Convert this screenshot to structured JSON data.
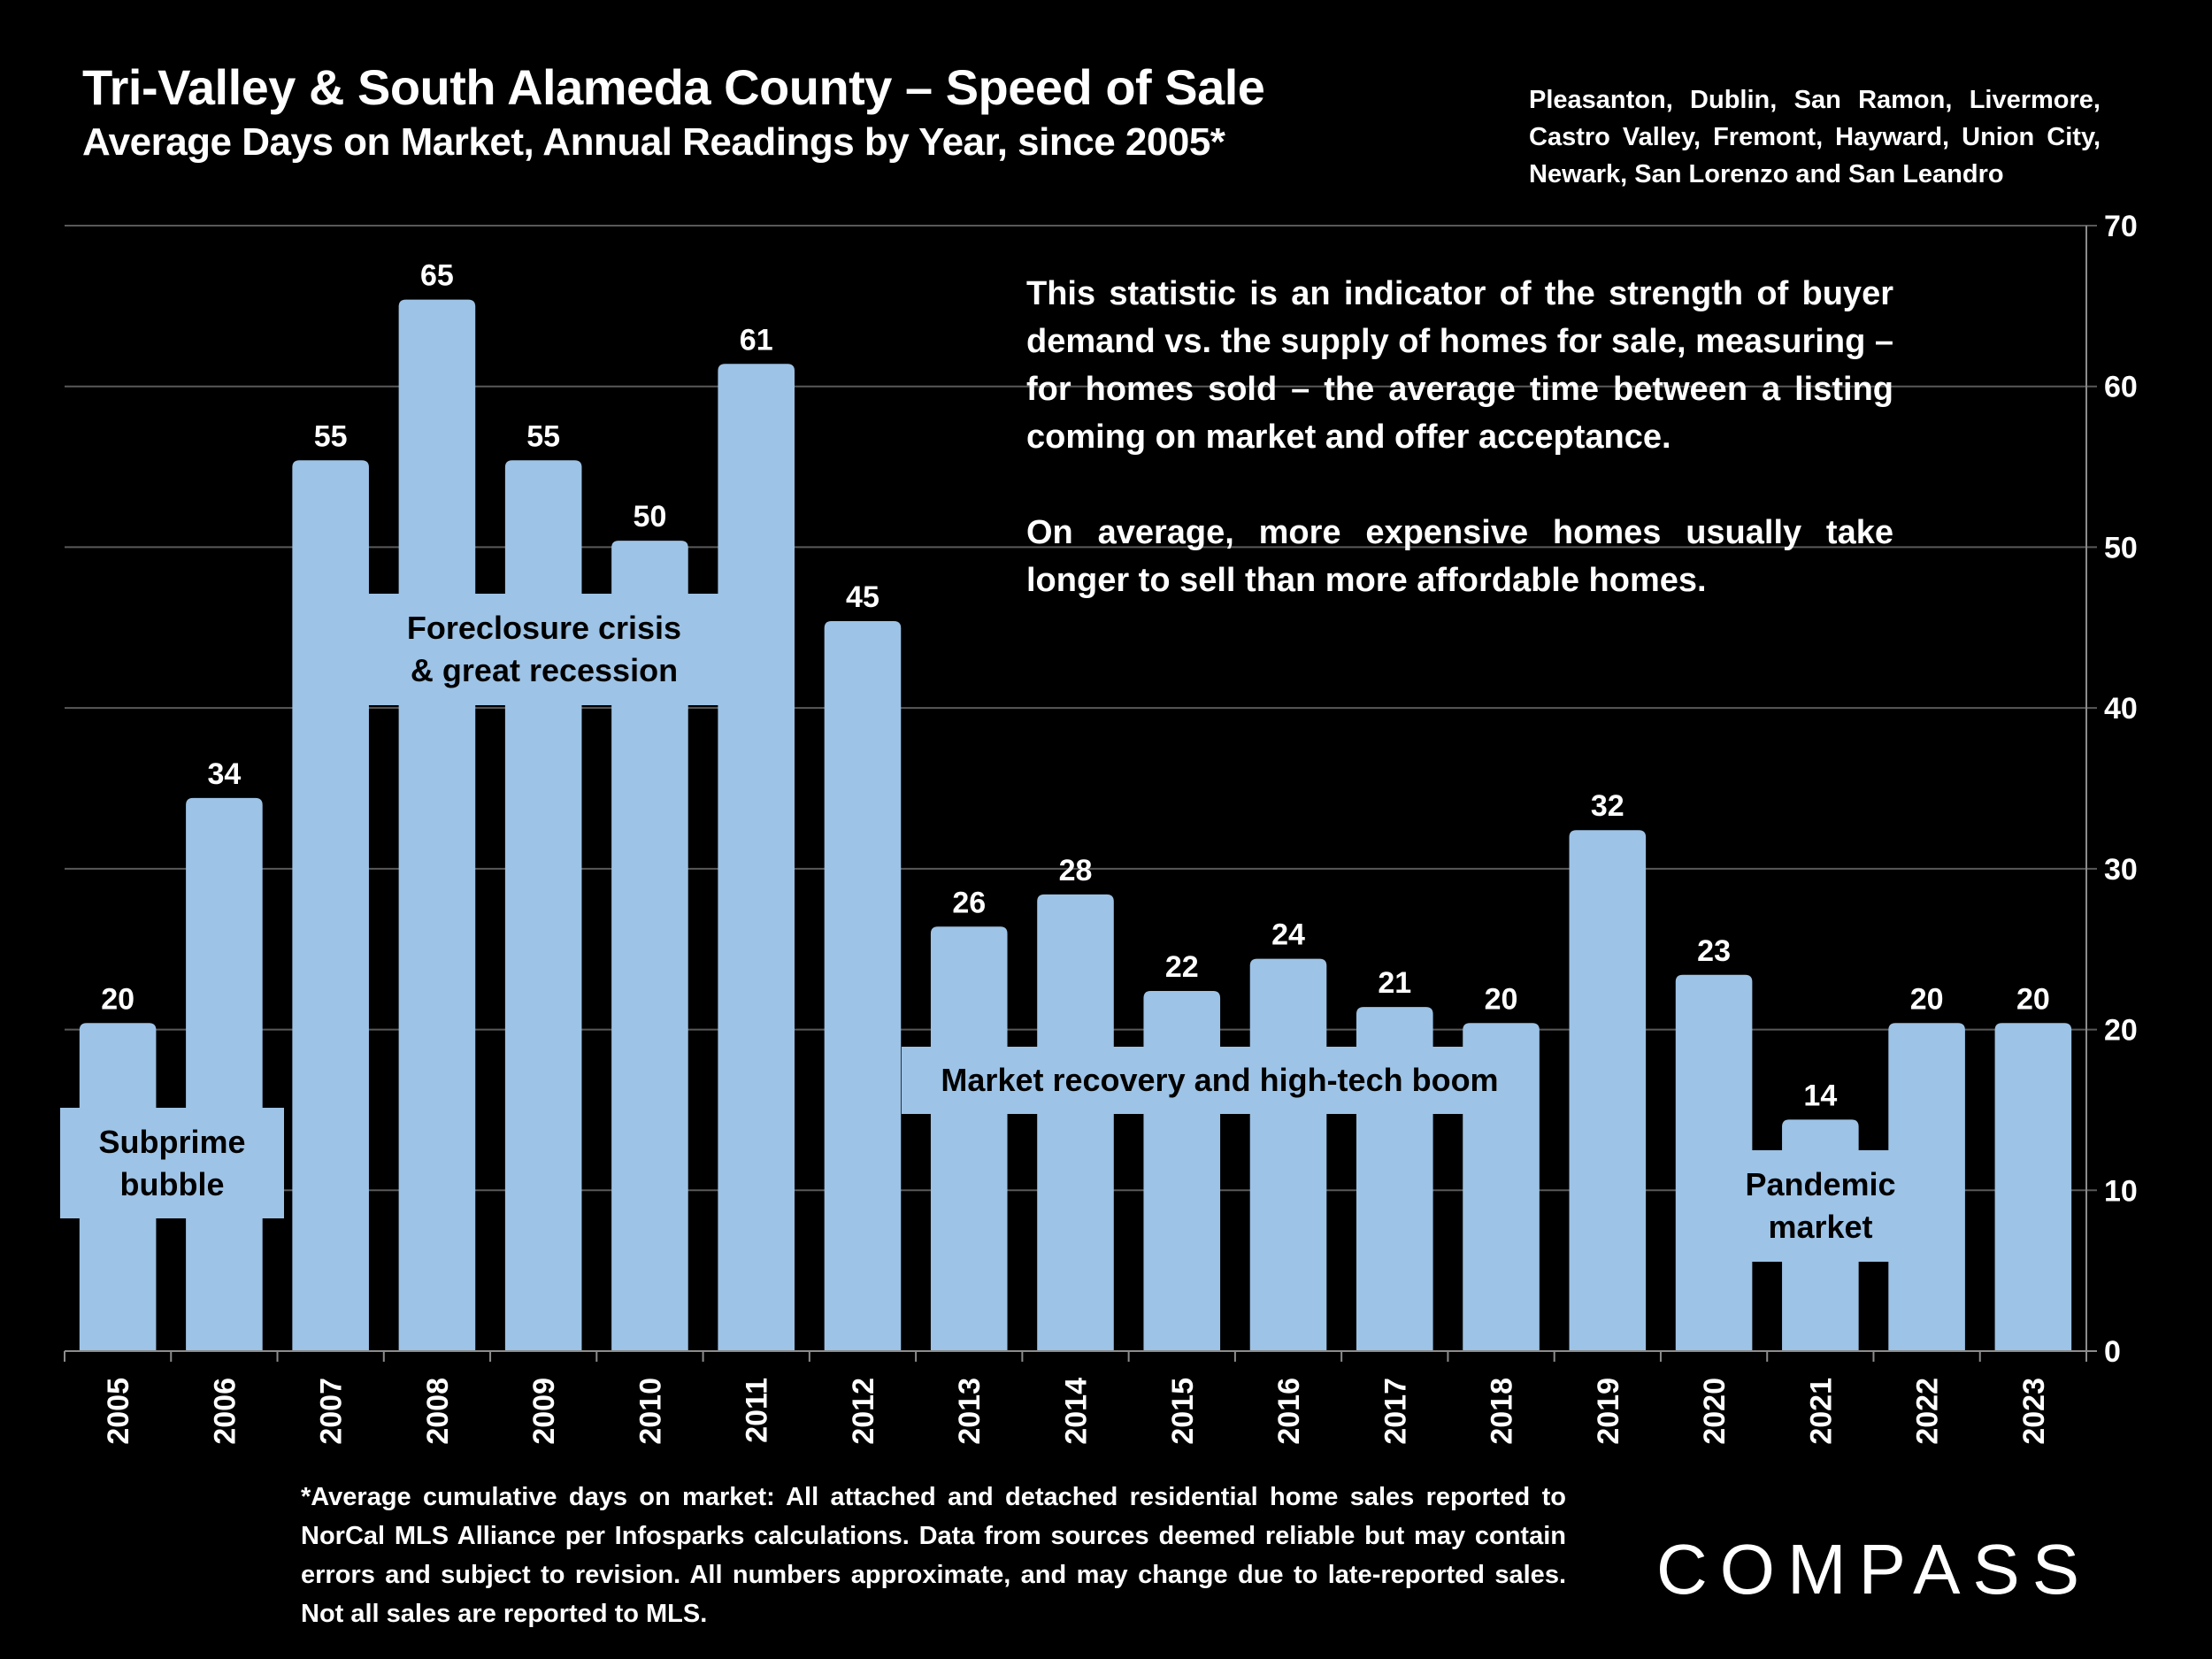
{
  "header": {
    "title": "Tri-Valley & South Alameda County – Speed of Sale",
    "subtitle": "Average Days on Market, Annual Readings by Year, since 2005*",
    "cities": "Pleasanton, Dublin, San Ramon, Livermore, Castro Valley, Fremont, Hayward, Union City, Newark, San Lorenzo and San Leandro"
  },
  "note": {
    "paragraph1": "This statistic is an indicator of the strength of buyer demand vs. the supply of homes for sale, measuring – for homes sold – the average time between a listing coming on market and offer acceptance.",
    "paragraph2": "On average, more expensive homes usually take longer to sell than more affordable homes."
  },
  "annotations": {
    "subprime": "Subprime bubble",
    "foreclosure_line1": "Foreclosure crisis",
    "foreclosure_line2": "& great recession",
    "recovery": "Market recovery and high-tech boom",
    "pandemic_line1": "Pandemic",
    "pandemic_line2": "market"
  },
  "footnote": "*Average cumulative days on market: All attached and detached residential home sales reported to NorCal MLS Alliance per Infosparks calculations. Data from sources deemed reliable but may contain errors and subject to revision. All numbers approximate, and may change due to late-reported sales. Not all sales are reported to MLS.",
  "logo": "COMPASS",
  "colors": {
    "bar": "#9DC3E6",
    "background": "#000000",
    "gridline": "#595959",
    "text": "#FFFFFF"
  },
  "chart_data": {
    "type": "bar",
    "title": "Tri-Valley & South Alameda County – Speed of Sale",
    "xlabel": "",
    "ylabel": "Average Days on Market",
    "categories": [
      "2005",
      "2006",
      "2007",
      "2008",
      "2009",
      "2010",
      "2011",
      "2012",
      "2013",
      "2014",
      "2015",
      "2016",
      "2017",
      "2018",
      "2019",
      "2020",
      "2021",
      "2022",
      "2023"
    ],
    "values": [
      20,
      34,
      55,
      65,
      55,
      50,
      61,
      45,
      26,
      28,
      22,
      24,
      21,
      20,
      32,
      23,
      14,
      20,
      20
    ],
    "data_labels": [
      "20",
      "34",
      "55",
      "65",
      "55",
      "50",
      "61",
      "45",
      "26",
      "28",
      "22",
      "24",
      "21",
      "20",
      "32",
      "23",
      "14",
      "20",
      "20"
    ],
    "ylim": [
      0,
      70
    ],
    "yticks": [
      0,
      10,
      20,
      30,
      40,
      50,
      60,
      70
    ],
    "y_axis_side": "right",
    "grid": true,
    "legend": "none"
  }
}
